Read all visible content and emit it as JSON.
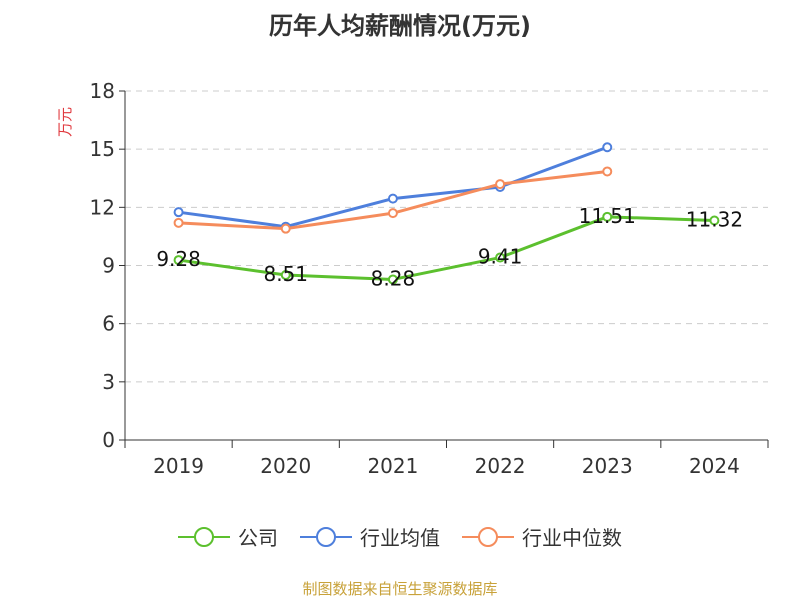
{
  "chart_data": {
    "type": "line",
    "title": "历年人均薪酬情况(万元)",
    "ylabel": "万元",
    "xlabel": "",
    "categories": [
      "2019",
      "2020",
      "2021",
      "2022",
      "2023",
      "2024"
    ],
    "ylim": [
      0,
      18
    ],
    "yticks": [
      0,
      3,
      6,
      9,
      12,
      15,
      18
    ],
    "grid": true,
    "legend_position": "bottom",
    "series": [
      {
        "name": "公司",
        "color": "#5cc02e",
        "values": [
          9.28,
          8.51,
          8.28,
          9.41,
          11.51,
          11.32
        ],
        "data_labels": [
          "9.28",
          "8.51",
          "8.28",
          "9.41",
          "11.51",
          "11.32"
        ]
      },
      {
        "name": "行业均值",
        "color": "#4e7fdc",
        "values": [
          11.75,
          11.0,
          12.45,
          13.05,
          15.1,
          null
        ]
      },
      {
        "name": "行业中位数",
        "color": "#f58c5c",
        "values": [
          11.2,
          10.9,
          11.7,
          13.2,
          13.85,
          null
        ]
      }
    ]
  },
  "source": "制图数据来自恒生聚源数据库"
}
